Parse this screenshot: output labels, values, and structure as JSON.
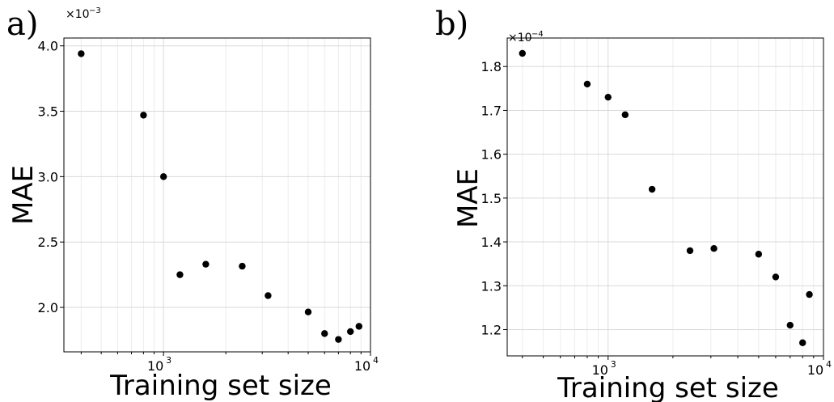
{
  "chart_data": [
    {
      "type": "scatter",
      "panel_label": "a)",
      "xlabel": "Training set size",
      "ylabel": "MAE",
      "x_scale": "log",
      "x_ticks": [
        {
          "value": 1000,
          "base": "10",
          "exp": "3"
        },
        {
          "value": 10000,
          "base": "10",
          "exp": "4"
        }
      ],
      "y_ticks": [
        {
          "value": 2.0,
          "label": "2.0"
        },
        {
          "value": 2.5,
          "label": "2.5"
        },
        {
          "value": 3.0,
          "label": "3.0"
        },
        {
          "value": 3.5,
          "label": "3.5"
        },
        {
          "value": 4.0,
          "label": "4.0"
        }
      ],
      "y_offset": {
        "base": "×10",
        "exp": "−3"
      },
      "xlim": [
        330,
        10000
      ],
      "ylim": [
        1.66,
        4.06
      ],
      "grid": true,
      "marker_color": "#000000",
      "x": [
        400,
        800,
        1000,
        1200,
        1600,
        2400,
        3200,
        5000,
        6000,
        7000,
        8000,
        8800
      ],
      "y": [
        3.94,
        3.47,
        3.0,
        2.25,
        2.33,
        2.315,
        2.09,
        1.965,
        1.8,
        1.755,
        1.815,
        1.855
      ]
    },
    {
      "type": "scatter",
      "panel_label": "b)",
      "xlabel": "Training set size",
      "ylabel": "MAE",
      "x_scale": "log",
      "x_ticks": [
        {
          "value": 1000,
          "base": "10",
          "exp": "3"
        },
        {
          "value": 10000,
          "base": "10",
          "exp": "4"
        }
      ],
      "y_ticks": [
        {
          "value": 1.2,
          "label": "1.2"
        },
        {
          "value": 1.3,
          "label": "1.3"
        },
        {
          "value": 1.4,
          "label": "1.4"
        },
        {
          "value": 1.5,
          "label": "1.5"
        },
        {
          "value": 1.6,
          "label": "1.6"
        },
        {
          "value": 1.7,
          "label": "1.7"
        },
        {
          "value": 1.8,
          "label": "1.8"
        }
      ],
      "y_offset": {
        "base": "×10",
        "exp": "−4"
      },
      "xlim": [
        340,
        10000
      ],
      "ylim": [
        1.14,
        1.865
      ],
      "grid": true,
      "marker_color": "#000000",
      "x": [
        400,
        800,
        1000,
        1200,
        1600,
        2400,
        3100,
        5000,
        6000,
        7000,
        8000,
        8600
      ],
      "y": [
        1.83,
        1.76,
        1.73,
        1.69,
        1.52,
        1.38,
        1.385,
        1.372,
        1.32,
        1.21,
        1.17,
        1.28
      ]
    }
  ]
}
